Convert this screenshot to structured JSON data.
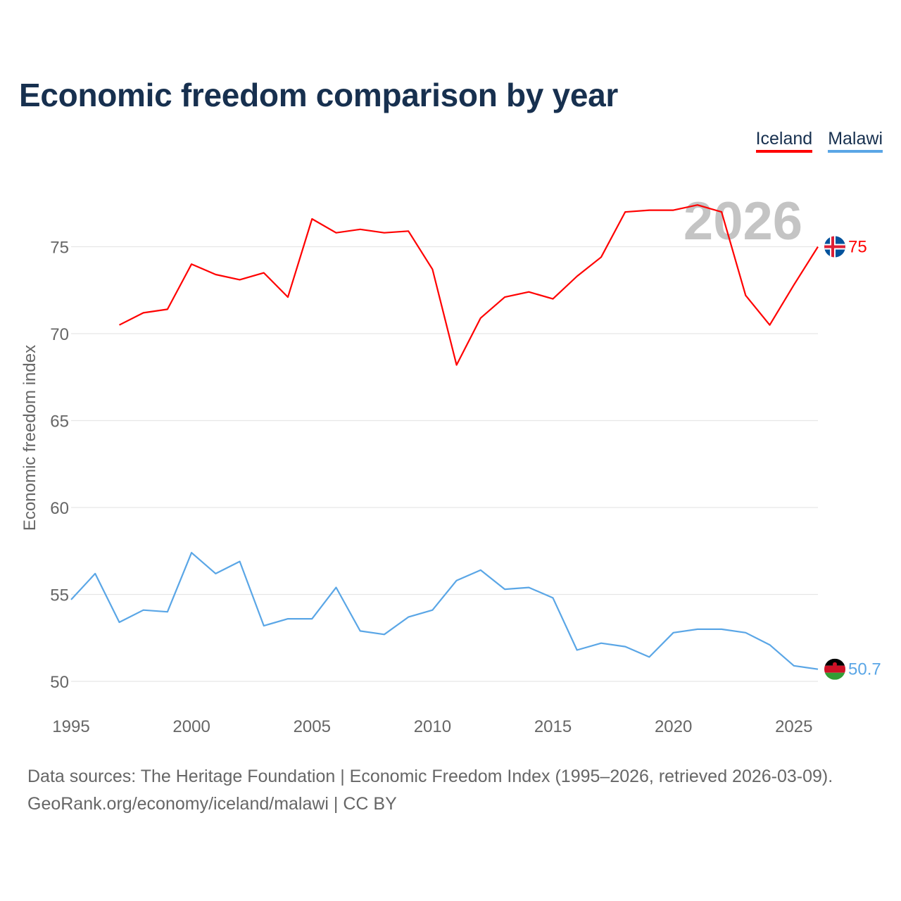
{
  "title": "Economic freedom comparison by year",
  "legend": [
    {
      "name": "Iceland",
      "color": "#ff0000"
    },
    {
      "name": "Malawi",
      "color": "#5aa6e6"
    }
  ],
  "year_watermark": "2026",
  "footer": {
    "line1": "Data sources: The Heritage Foundation | Economic Freedom Index (1995–2026, retrieved 2026-03-09).",
    "line2": "GeoRank.org/economy/iceland/malawi | CC BY"
  },
  "chart_data": {
    "type": "line",
    "title": "Economic freedom comparison by year",
    "xlabel": "",
    "ylabel": "Economic freedom index",
    "xlim": [
      1995,
      2026
    ],
    "ylim": [
      48,
      79
    ],
    "x_ticks": [
      1995,
      2000,
      2005,
      2010,
      2015,
      2020,
      2025
    ],
    "y_ticks": [
      50,
      55,
      60,
      65,
      70,
      75
    ],
    "grid": true,
    "series": [
      {
        "name": "Iceland",
        "color": "#ff0000",
        "end_label": "75",
        "x": [
          1997,
          1998,
          1999,
          2000,
          2001,
          2002,
          2003,
          2004,
          2005,
          2006,
          2007,
          2008,
          2009,
          2010,
          2011,
          2012,
          2013,
          2014,
          2015,
          2016,
          2017,
          2018,
          2019,
          2020,
          2021,
          2022,
          2023,
          2024,
          2025,
          2026
        ],
        "values": [
          70.5,
          71.2,
          71.4,
          74.0,
          73.4,
          73.1,
          73.5,
          72.1,
          76.6,
          75.8,
          76.0,
          75.8,
          75.9,
          73.7,
          68.2,
          70.9,
          72.1,
          72.4,
          72.0,
          73.3,
          74.4,
          77.0,
          77.1,
          77.1,
          77.4,
          77.0,
          72.2,
          70.5,
          72.8,
          75.0
        ]
      },
      {
        "name": "Malawi",
        "color": "#5aa6e6",
        "end_label": "50.7",
        "x": [
          1995,
          1996,
          1997,
          1998,
          1999,
          2000,
          2001,
          2002,
          2003,
          2004,
          2005,
          2006,
          2007,
          2008,
          2009,
          2010,
          2011,
          2012,
          2013,
          2014,
          2015,
          2016,
          2017,
          2018,
          2019,
          2020,
          2021,
          2022,
          2023,
          2024,
          2025,
          2026
        ],
        "values": [
          54.7,
          56.2,
          53.4,
          54.1,
          54.0,
          57.4,
          56.2,
          56.9,
          53.2,
          53.6,
          53.6,
          55.4,
          52.9,
          52.7,
          53.7,
          54.1,
          55.8,
          56.4,
          55.3,
          55.4,
          54.8,
          51.8,
          52.2,
          52.0,
          51.4,
          52.8,
          53.0,
          53.0,
          52.8,
          52.1,
          50.9,
          50.7
        ]
      }
    ]
  }
}
